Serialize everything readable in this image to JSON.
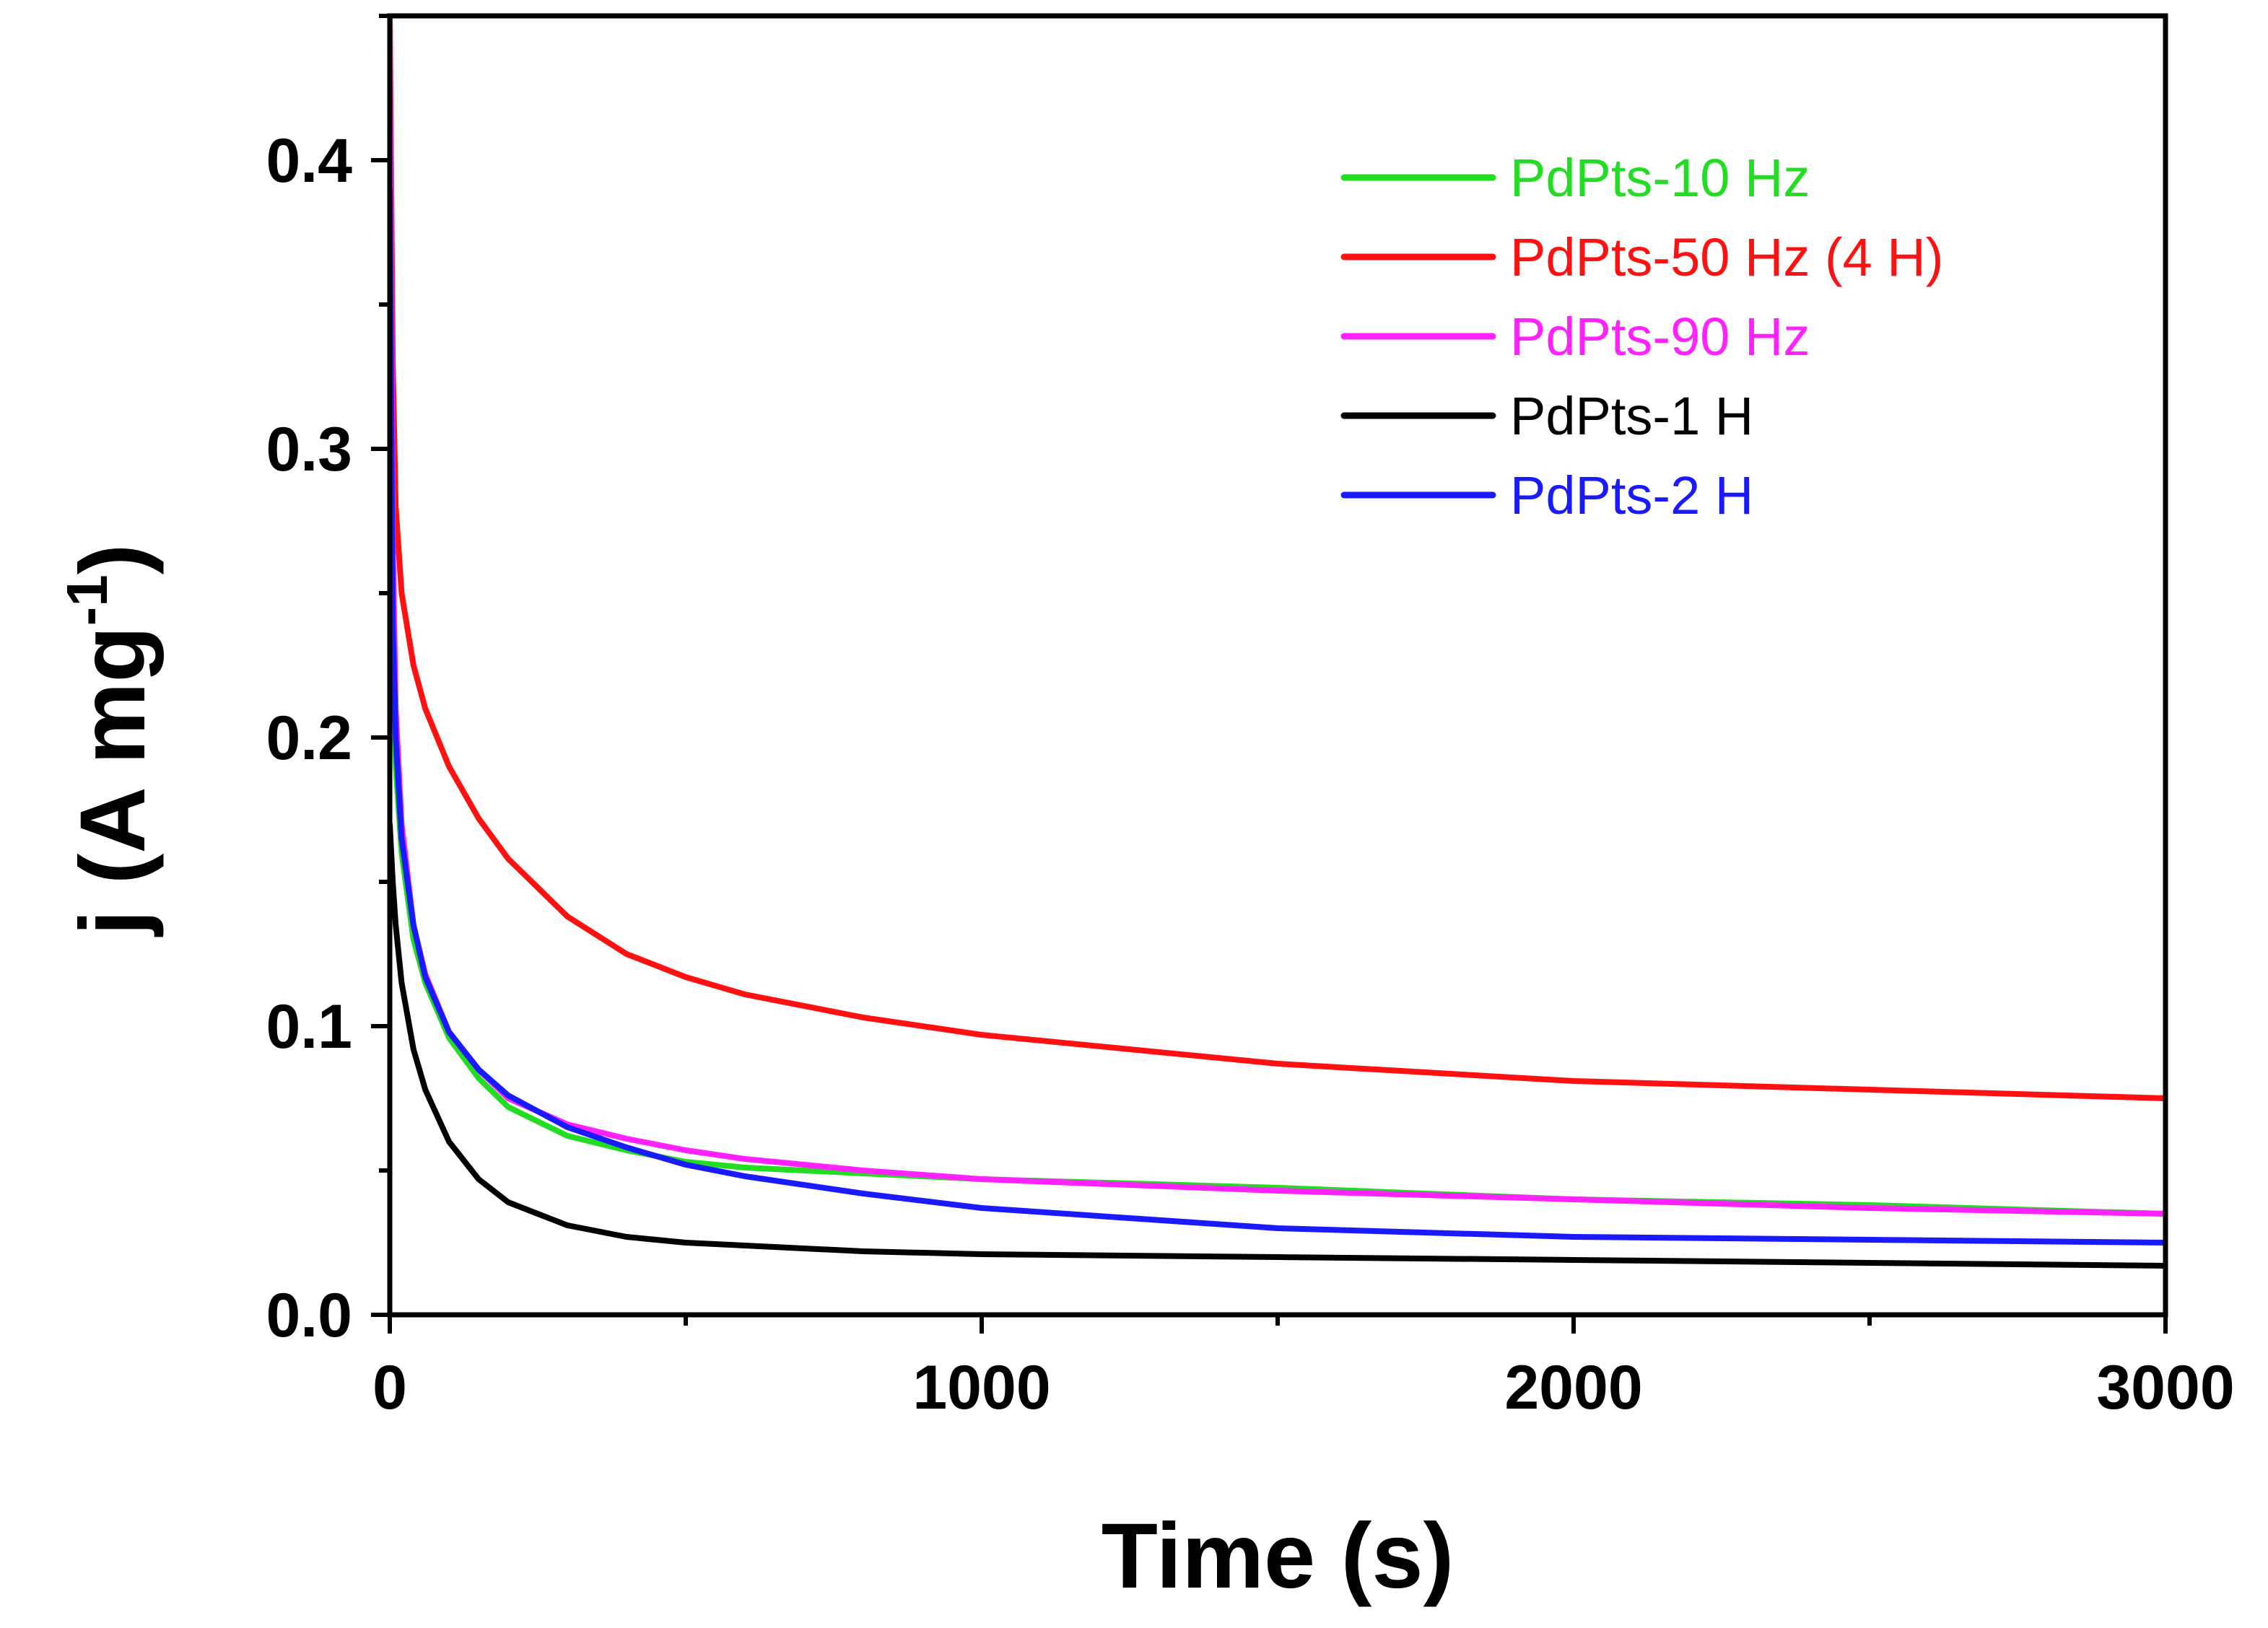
{
  "chart_data": {
    "type": "line",
    "title": "",
    "xlabel": "Time (s)",
    "ylabel": "j (A mg",
    "ylabel_superscript": "-1",
    "ylabel_close": ")",
    "xlim": [
      0,
      3000
    ],
    "ylim": [
      0,
      0.45
    ],
    "xticks": [
      0,
      1000,
      2000,
      3000
    ],
    "xtick_labels": [
      "0",
      "1000",
      "2000",
      "3000"
    ],
    "yticks": [
      0.0,
      0.1,
      0.2,
      0.3,
      0.4
    ],
    "ytick_labels": [
      "0.0",
      "0.1",
      "0.2",
      "0.3",
      "0.4"
    ],
    "grid": false,
    "legend_position": "top-right",
    "series": [
      {
        "name": "PdPts-10 Hz",
        "color": "#22dd22",
        "x": [
          0,
          5,
          10,
          20,
          40,
          60,
          100,
          150,
          200,
          300,
          400,
          500,
          600,
          800,
          1000,
          1500,
          2000,
          2500,
          3000
        ],
        "y": [
          0.39,
          0.23,
          0.19,
          0.16,
          0.13,
          0.115,
          0.096,
          0.082,
          0.072,
          0.062,
          0.057,
          0.053,
          0.051,
          0.049,
          0.047,
          0.044,
          0.04,
          0.038,
          0.035
        ]
      },
      {
        "name": "PdPts-50 Hz (4 H)",
        "color": "#ff1111",
        "x": [
          0,
          5,
          10,
          20,
          40,
          60,
          100,
          150,
          200,
          300,
          400,
          500,
          600,
          800,
          1000,
          1500,
          2000,
          2500,
          3000
        ],
        "y": [
          0.45,
          0.33,
          0.28,
          0.25,
          0.225,
          0.21,
          0.19,
          0.172,
          0.158,
          0.138,
          0.125,
          0.117,
          0.111,
          0.103,
          0.097,
          0.087,
          0.081,
          0.078,
          0.075
        ]
      },
      {
        "name": "PdPts-90 Hz",
        "color": "#ff22ff",
        "x": [
          0,
          5,
          10,
          20,
          40,
          60,
          100,
          150,
          200,
          300,
          400,
          500,
          600,
          800,
          1000,
          1500,
          2000,
          2500,
          3000
        ],
        "y": [
          0.45,
          0.27,
          0.21,
          0.17,
          0.135,
          0.118,
          0.098,
          0.085,
          0.075,
          0.066,
          0.061,
          0.057,
          0.054,
          0.05,
          0.047,
          0.043,
          0.04,
          0.037,
          0.035
        ]
      },
      {
        "name": "PdPts-1 H",
        "color": "#000000",
        "x": [
          0,
          5,
          10,
          20,
          40,
          60,
          100,
          150,
          200,
          300,
          400,
          500,
          600,
          800,
          1000,
          1500,
          2000,
          2500,
          3000
        ],
        "y": [
          0.17,
          0.15,
          0.135,
          0.115,
          0.092,
          0.078,
          0.06,
          0.047,
          0.039,
          0.031,
          0.027,
          0.025,
          0.024,
          0.022,
          0.021,
          0.02,
          0.019,
          0.018,
          0.017
        ]
      },
      {
        "name": "PdPts-2 H",
        "color": "#1a1aff",
        "x": [
          0,
          5,
          10,
          20,
          40,
          60,
          100,
          150,
          200,
          300,
          400,
          500,
          600,
          800,
          1000,
          1500,
          2000,
          2500,
          3000
        ],
        "y": [
          0.39,
          0.24,
          0.2,
          0.165,
          0.135,
          0.117,
          0.098,
          0.085,
          0.076,
          0.065,
          0.058,
          0.052,
          0.048,
          0.042,
          0.037,
          0.03,
          0.027,
          0.026,
          0.025
        ]
      }
    ]
  }
}
